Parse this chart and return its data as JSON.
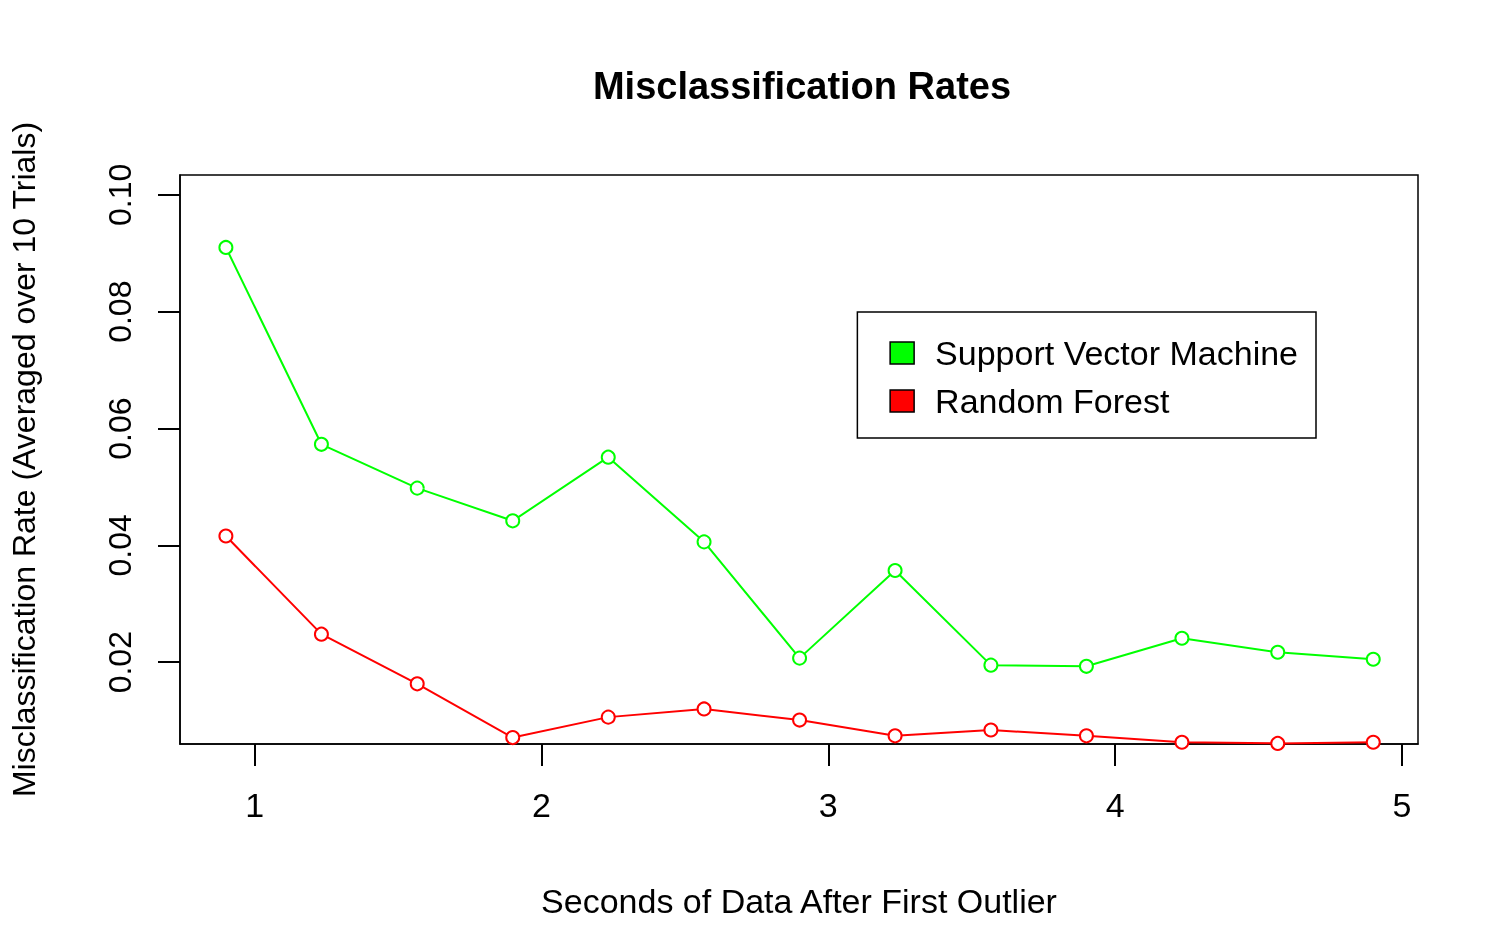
{
  "chart_data": {
    "type": "line",
    "title": "Misclassification Rates",
    "xlabel": "Seconds of Data After First Outlier",
    "ylabel": "Misclassification Rate (Averaged over 10 Trials)",
    "x": [
      0.9,
      1.233,
      1.567,
      1.9,
      2.233,
      2.567,
      2.9,
      3.233,
      3.567,
      3.9,
      4.233,
      4.567,
      4.9
    ],
    "series": [
      {
        "name": "Support Vector Machine",
        "color": "#00ff00",
        "values": [
          0.091,
          0.0573,
          0.0498,
          0.0442,
          0.0551,
          0.0406,
          0.0207,
          0.0357,
          0.0195,
          0.0193,
          0.0241,
          0.0217,
          0.0205
        ]
      },
      {
        "name": "Random Forest",
        "color": "#ff0000",
        "values": [
          0.0416,
          0.0248,
          0.0163,
          0.0071,
          0.0106,
          0.012,
          0.0101,
          0.0074,
          0.0084,
          0.0074,
          0.0063,
          0.0061,
          0.0063
        ]
      }
    ],
    "xlim": [
      0.74,
      5.056
    ],
    "xticks": [
      1,
      2,
      3,
      4,
      5
    ],
    "ylim": [
      0.006,
      0.1034
    ],
    "yticks": [
      {
        "value": 0.02,
        "label": "0.02"
      },
      {
        "value": 0.04,
        "label": "0.04"
      },
      {
        "value": 0.06,
        "label": "0.06"
      },
      {
        "value": 0.08,
        "label": "0.08"
      },
      {
        "value": 0.1,
        "label": "0.10"
      }
    ],
    "grid": false,
    "legend": "top right",
    "marker": "circle",
    "line_style": "solid"
  }
}
